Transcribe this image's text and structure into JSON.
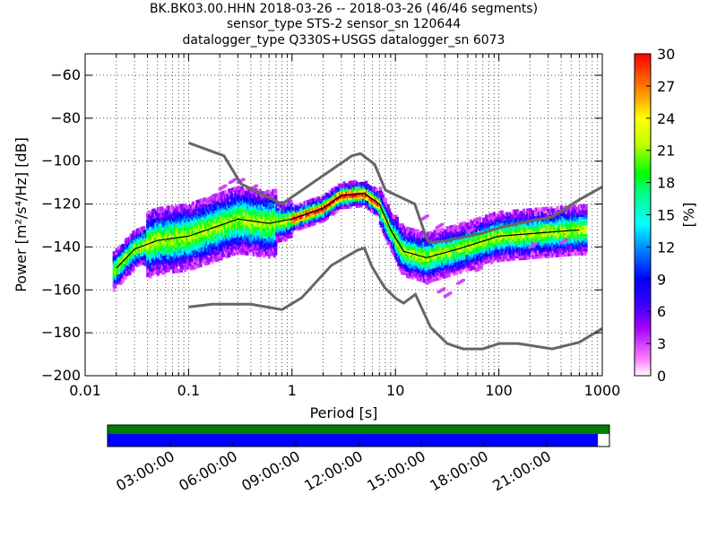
{
  "title": {
    "line1": "BK.BK03.00.HHN   2018-03-26 -- 2018-03-26  (46/46 segments)",
    "line2": "sensor_type STS-2 sensor_sn 120644",
    "line3": "datalogger_type Q330S+USGS datalogger_sn 6073"
  },
  "chart_data": {
    "type": "heatmap",
    "xlabel": "Period [s]",
    "ylabel": "Power [m²/s⁴/Hz] [dB]",
    "x_scale": "log",
    "xlim": [
      0.01,
      1000
    ],
    "ylim": [
      -200,
      -50
    ],
    "x_ticks": [
      "0.01",
      "0.1",
      "1",
      "10",
      "100",
      "1000"
    ],
    "y_ticks": [
      "−60",
      "−80",
      "−100",
      "−120",
      "−140",
      "−160",
      "−180",
      "−200"
    ],
    "colorbar": {
      "label": "[%]",
      "min": 0,
      "max": 30,
      "ticks": [
        "0",
        "3",
        "6",
        "9",
        "12",
        "15",
        "18",
        "21",
        "24",
        "27",
        "30"
      ]
    },
    "noise_models": [
      {
        "points": [
          [
            0.1,
            -91.5
          ],
          [
            0.22,
            -97.5
          ],
          [
            0.32,
            -110.5
          ],
          [
            0.8,
            -120
          ],
          [
            3.8,
            -97.5
          ],
          [
            4.6,
            -96.5
          ],
          [
            6.3,
            -101.5
          ],
          [
            8,
            -113.5
          ],
          [
            15.4,
            -120
          ],
          [
            20,
            -136
          ],
          [
            21.5,
            -138
          ],
          [
            31.6,
            -137
          ],
          [
            45,
            -135.5
          ],
          [
            70,
            -133.5
          ],
          [
            101,
            -131
          ],
          [
            154,
            -129
          ],
          [
            328,
            -126
          ],
          [
            600,
            -118
          ],
          [
            1000,
            -112
          ]
        ]
      },
      {
        "points": [
          [
            0.1,
            -168
          ],
          [
            0.17,
            -166.7
          ],
          [
            0.4,
            -166.7
          ],
          [
            0.8,
            -169.2
          ],
          [
            1.24,
            -163.7
          ],
          [
            2.4,
            -148.6
          ],
          [
            4.3,
            -141.5
          ],
          [
            5,
            -140.5
          ],
          [
            5.9,
            -149
          ],
          [
            6.9,
            -154.5
          ],
          [
            7.9,
            -159
          ],
          [
            10,
            -163.8
          ],
          [
            12,
            -166.2
          ],
          [
            15.6,
            -162.1
          ],
          [
            21.9,
            -177.5
          ],
          [
            31.6,
            -185
          ],
          [
            45,
            -187.5
          ],
          [
            70,
            -187.5
          ],
          [
            101,
            -185
          ],
          [
            154,
            -185
          ],
          [
            328,
            -187.5
          ],
          [
            600,
            -184.4
          ],
          [
            1000,
            -178
          ]
        ]
      }
    ],
    "time_coverage": {
      "tick_labels": [
        "03:00:00",
        "06:00:00",
        "09:00:00",
        "12:00:00",
        "15:00:00",
        "18:00:00",
        "21:00:00"
      ],
      "data_fraction": 0.977,
      "colors": {
        "segments": "#008000",
        "data": "#0000ff"
      }
    }
  }
}
